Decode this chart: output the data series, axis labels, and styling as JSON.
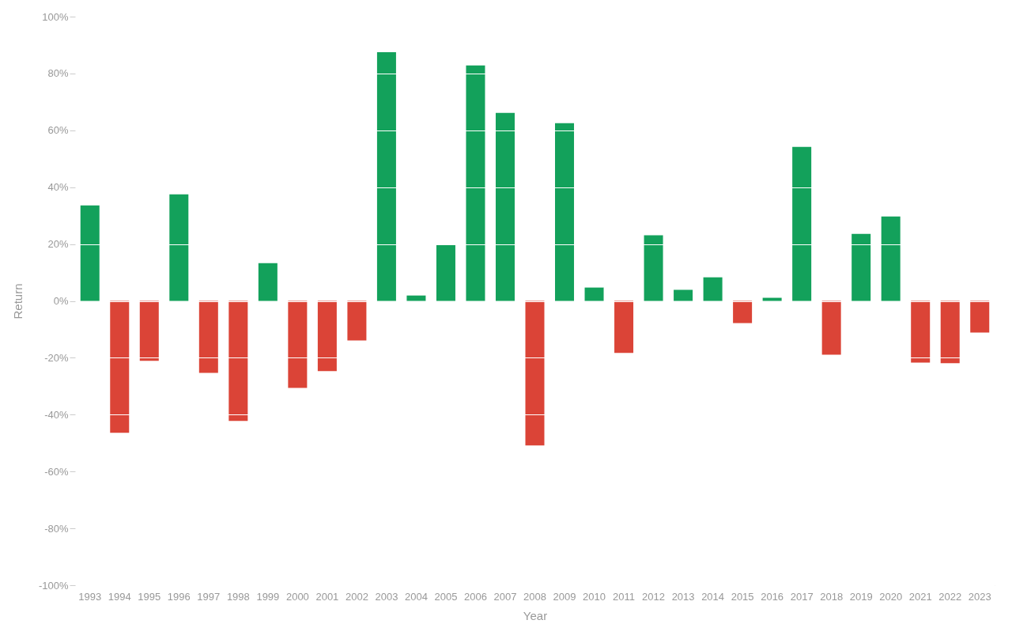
{
  "chart_data": {
    "type": "bar",
    "xlabel": "Year",
    "ylabel": "Return",
    "categories": [
      "1993",
      "1994",
      "1995",
      "1996",
      "1997",
      "1998",
      "1999",
      "2000",
      "2001",
      "2002",
      "2003",
      "2004",
      "2005",
      "2006",
      "2007",
      "2008",
      "2009",
      "2010",
      "2011",
      "2012",
      "2013",
      "2014",
      "2015",
      "2016",
      "2017",
      "2018",
      "2019",
      "2020",
      "2021",
      "2022",
      "2023"
    ],
    "values": [
      33.6,
      -46.4,
      -21.1,
      37.5,
      -25.3,
      -42.2,
      13.3,
      -30.6,
      -24.7,
      -13.9,
      87.5,
      1.9,
      19.7,
      82.8,
      66.1,
      -50.8,
      62.5,
      4.7,
      -18.3,
      23.1,
      3.9,
      8.3,
      -7.8,
      1.1,
      54.2,
      -18.9,
      23.6,
      29.7,
      -21.7,
      -21.9,
      -11.1
    ],
    "colors": [
      "#13a15b",
      "#db4437",
      "#db4437",
      "#13a15b",
      "#db4437",
      "#db4437",
      "#13a15b",
      "#db4437",
      "#db4437",
      "#db4437",
      "#13a15b",
      "#13a15b",
      "#13a15b",
      "#13a15b",
      "#13a15b",
      "#db4437",
      "#13a15b",
      "#13a15b",
      "#db4437",
      "#13a15b",
      "#13a15b",
      "#13a15b",
      "#db4437",
      "#13a15b",
      "#13a15b",
      "#db4437",
      "#13a15b",
      "#13a15b",
      "#db4437",
      "#db4437",
      "#db4437"
    ],
    "ylim": [
      -100,
      100
    ],
    "yticks": [
      {
        "value": -100,
        "label": "-100%"
      },
      {
        "value": -80,
        "label": "-80%"
      },
      {
        "value": -60,
        "label": "-60%"
      },
      {
        "value": -40,
        "label": "-40%"
      },
      {
        "value": -20,
        "label": "-20%"
      },
      {
        "value": 0,
        "label": "0%"
      },
      {
        "value": 20,
        "label": "20%"
      },
      {
        "value": 40,
        "label": "40%"
      },
      {
        "value": 60,
        "label": "60%"
      },
      {
        "value": 80,
        "label": "80%"
      },
      {
        "value": 100,
        "label": "100%"
      }
    ],
    "grid": "y"
  }
}
